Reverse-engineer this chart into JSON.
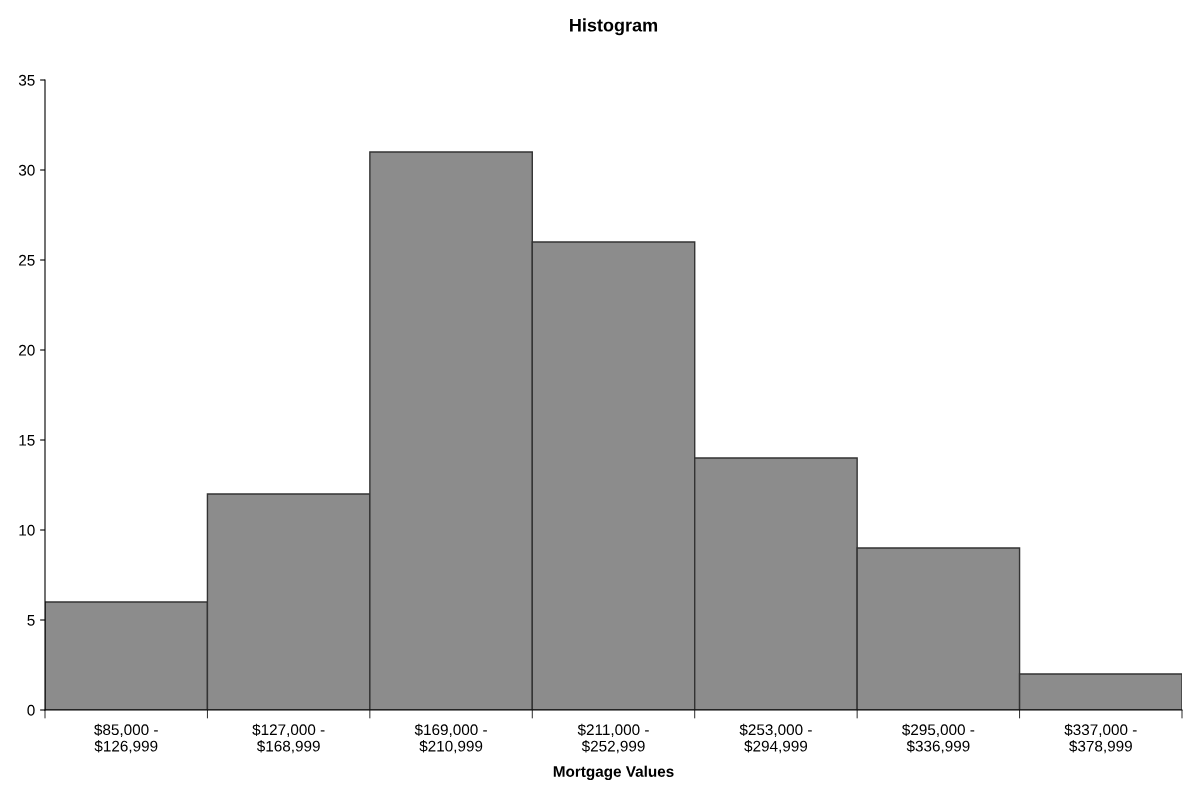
{
  "chart_data": {
    "type": "histogram",
    "title": "Histogram",
    "xlabel": "Mortgage Values",
    "categories": [
      "$85,000 -\n$126,999",
      "$127,000 -\n$168,999",
      "$169,000 -\n$210,999",
      "$211,000 -\n$252,999",
      "$253,000 -\n$294,999",
      "$295,000 -\n$336,999",
      "$337,000 -\n$378,999"
    ],
    "values": [
      6,
      12,
      31,
      26,
      14,
      9,
      2
    ],
    "color": "#8c8c8c",
    "ylim": [
      0,
      35
    ],
    "yticks": [
      0,
      5,
      10,
      15,
      20,
      25,
      30,
      35
    ],
    "grid": false
  }
}
